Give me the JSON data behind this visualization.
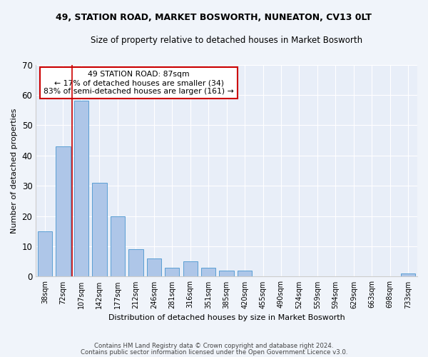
{
  "title1": "49, STATION ROAD, MARKET BOSWORTH, NUNEATON, CV13 0LT",
  "title2": "Size of property relative to detached houses in Market Bosworth",
  "xlabel": "Distribution of detached houses by size in Market Bosworth",
  "ylabel": "Number of detached properties",
  "categories": [
    "38sqm",
    "72sqm",
    "107sqm",
    "142sqm",
    "177sqm",
    "212sqm",
    "246sqm",
    "281sqm",
    "316sqm",
    "351sqm",
    "385sqm",
    "420sqm",
    "455sqm",
    "490sqm",
    "524sqm",
    "559sqm",
    "594sqm",
    "629sqm",
    "663sqm",
    "698sqm",
    "733sqm"
  ],
  "values": [
    15,
    43,
    58,
    31,
    20,
    9,
    6,
    3,
    5,
    3,
    2,
    2,
    0,
    0,
    0,
    0,
    0,
    0,
    0,
    0,
    1
  ],
  "bar_color": "#aec6e8",
  "bar_edge_color": "#5a9fd4",
  "vline_x": 1.5,
  "vline_color": "#cc0000",
  "annotation_text": "49 STATION ROAD: 87sqm\n← 17% of detached houses are smaller (34)\n83% of semi-detached houses are larger (161) →",
  "annotation_box_color": "#ffffff",
  "annotation_box_edge_color": "#cc0000",
  "ylim": [
    0,
    70
  ],
  "yticks": [
    0,
    10,
    20,
    30,
    40,
    50,
    60,
    70
  ],
  "footer1": "Contains HM Land Registry data © Crown copyright and database right 2024.",
  "footer2": "Contains public sector information licensed under the Open Government Licence v3.0.",
  "bg_color": "#f0f4fa",
  "plot_bg_color": "#e8eef8"
}
